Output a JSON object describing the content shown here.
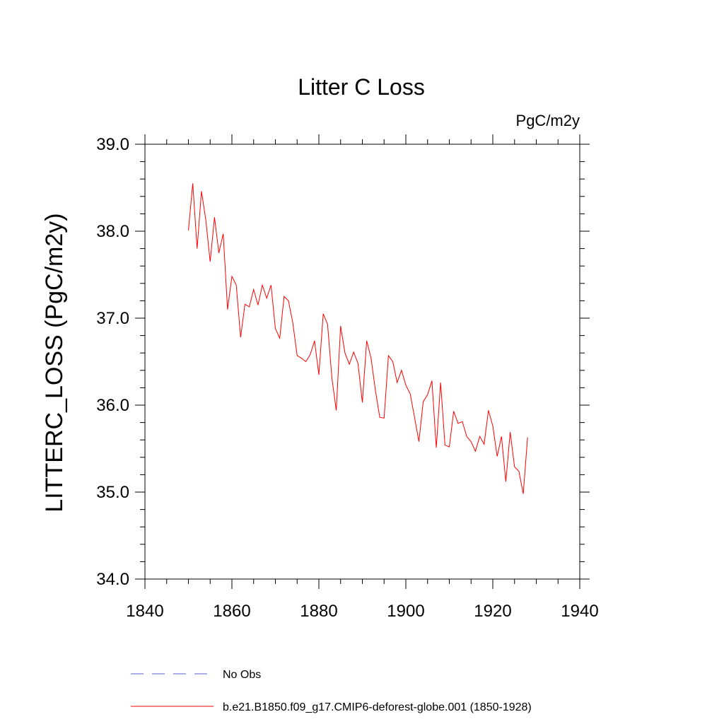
{
  "chart_data": {
    "type": "line",
    "title": "Litter C Loss",
    "units_label": "PgC/m2y",
    "ylabel": "LITTERC_LOSS  (PgC/m2y)",
    "xlabel": "",
    "xlim": [
      1840,
      1940
    ],
    "ylim": [
      34.0,
      39.0
    ],
    "x_ticks": [
      1840,
      1860,
      1880,
      1900,
      1920,
      1940
    ],
    "x_tick_labels": [
      "1840",
      "1860",
      "1880",
      "1900",
      "1920",
      "1940"
    ],
    "y_ticks": [
      34.0,
      35.0,
      36.0,
      37.0,
      38.0,
      39.0
    ],
    "y_tick_labels": [
      "34.0",
      "35.0",
      "36.0",
      "37.0",
      "38.0",
      "39.0"
    ],
    "grid": false,
    "legend_placement": "bottom",
    "colors": {
      "model": "#ff0000",
      "obs": "#5b5bd6",
      "axis": "#000000"
    },
    "series": [
      {
        "name": "b.e21.B1850.f09_g17.CMIP6-deforest-globe.001 (1850-1928)",
        "color": "#ff0000",
        "style": "solid",
        "x": [
          1850,
          1851,
          1852,
          1853,
          1854,
          1855,
          1856,
          1857,
          1858,
          1859,
          1860,
          1861,
          1862,
          1863,
          1864,
          1865,
          1866,
          1867,
          1868,
          1869,
          1870,
          1871,
          1872,
          1873,
          1874,
          1875,
          1876,
          1877,
          1878,
          1879,
          1880,
          1881,
          1882,
          1883,
          1884,
          1885,
          1886,
          1887,
          1888,
          1889,
          1890,
          1891,
          1892,
          1893,
          1894,
          1895,
          1896,
          1897,
          1898,
          1899,
          1900,
          1901,
          1902,
          1903,
          1904,
          1905,
          1906,
          1907,
          1908,
          1909,
          1910,
          1911,
          1912,
          1913,
          1914,
          1915,
          1916,
          1917,
          1918,
          1919,
          1920,
          1921,
          1922,
          1923,
          1924,
          1925,
          1926,
          1927,
          1928
        ],
        "values": [
          38.01,
          38.55,
          37.8,
          38.46,
          38.13,
          37.65,
          38.16,
          37.75,
          37.97,
          37.1,
          37.48,
          37.38,
          36.78,
          37.16,
          37.13,
          37.33,
          37.15,
          37.38,
          37.23,
          37.38,
          36.88,
          36.77,
          37.25,
          37.2,
          36.95,
          36.57,
          36.54,
          36.5,
          36.58,
          36.74,
          36.35,
          37.05,
          36.93,
          36.31,
          35.94,
          36.91,
          36.6,
          36.47,
          36.61,
          36.48,
          36.03,
          36.74,
          36.54,
          36.17,
          35.86,
          35.85,
          36.57,
          36.5,
          36.26,
          36.4,
          36.23,
          36.13,
          35.86,
          35.58,
          36.04,
          36.12,
          36.28,
          35.51,
          36.26,
          35.54,
          35.52,
          35.93,
          35.79,
          35.81,
          35.64,
          35.58,
          35.47,
          35.64,
          35.55,
          35.94,
          35.76,
          35.41,
          35.64,
          35.12,
          35.69,
          35.29,
          35.24,
          34.98,
          35.63
        ]
      },
      {
        "name": "No Obs",
        "color": "#5b5bd6",
        "style": "dashed",
        "x": [],
        "values": []
      }
    ]
  }
}
